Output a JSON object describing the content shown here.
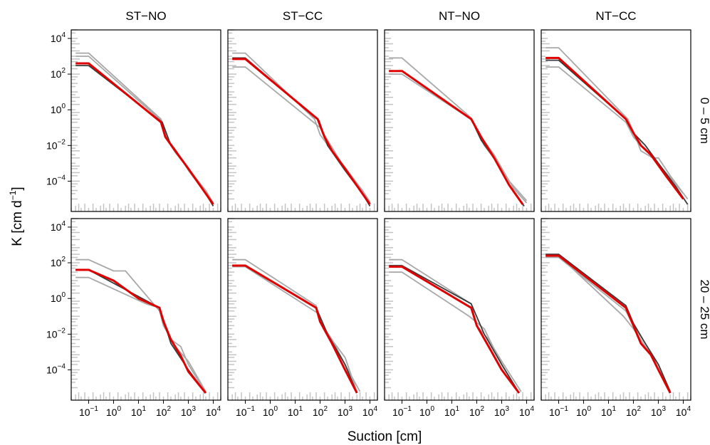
{
  "chart_data": {
    "type": "line",
    "facet_columns": [
      "ST−NO",
      "ST−CC",
      "NT−NO",
      "NT−CC"
    ],
    "facet_rows": [
      "0 – 5 cm",
      "20 – 25 cm"
    ],
    "xlabel": "Suction [cm]",
    "ylabel_main": "K  [cm d",
    "ylabel_sup": "−1",
    "ylabel_end": "]",
    "x_scale": "log10",
    "y_scale": "log10",
    "xlim": [
      0.02,
      20000
    ],
    "ylim": [
      2e-06,
      30000
    ],
    "x_ticks": [
      0.1,
      1,
      10,
      100,
      1000,
      10000
    ],
    "x_tick_exponents": [
      "−1",
      "0",
      "1",
      "2",
      "3",
      "4"
    ],
    "y_ticks": [
      0.0001,
      0.01,
      1,
      100,
      10000
    ],
    "y_tick_exponents": [
      "−4",
      "−2",
      "0",
      "2",
      "4"
    ],
    "tick_base": "10",
    "grid": false,
    "colors": {
      "mean": "#e00000",
      "replicate_light": "#a8a8a8",
      "replicate_dark": "#3a3a3a"
    },
    "panels": [
      {
        "column": "ST−NO",
        "row": "0 – 5 cm",
        "mean": {
          "x": [
            0.03,
            0.1,
            80,
            120,
            300,
            1000,
            5000,
            10000
          ],
          "y": [
            400,
            400,
            0.2,
            0.03,
            0.005,
            0.0005,
            2e-05,
            5e-06
          ]
        },
        "replicates": [
          {
            "shade": "light",
            "x": [
              0.03,
              0.1,
              70,
              120,
              300,
              1000,
              5000,
              10000
            ],
            "y": [
              1000,
              1000,
              0.3,
              0.03,
              0.004,
              0.0005,
              3e-05,
              6e-06
            ]
          },
          {
            "shade": "light",
            "x": [
              0.03,
              0.1,
              80,
              150,
              300,
              1000,
              5000,
              10000
            ],
            "y": [
              1500,
              1500,
              0.3,
              0.02,
              0.006,
              0.0004,
              2e-05,
              5e-06
            ]
          },
          {
            "shade": "dark",
            "x": [
              0.03,
              0.1,
              90,
              200,
              1000,
              5000,
              10000
            ],
            "y": [
              300,
              300,
              0.2,
              0.01,
              0.0005,
              2e-05,
              4e-06
            ]
          }
        ]
      },
      {
        "column": "ST−CC",
        "row": "0 – 5 cm",
        "mean": {
          "x": [
            0.03,
            0.1,
            80,
            150,
            300,
            1000,
            5000,
            10000
          ],
          "y": [
            700,
            700,
            0.3,
            0.03,
            0.005,
            0.0005,
            2e-05,
            5e-06
          ]
        },
        "replicates": [
          {
            "shade": "light",
            "x": [
              0.03,
              0.1,
              60,
              100,
              300,
              1000,
              5000,
              10000
            ],
            "y": [
              1500,
              1500,
              0.3,
              0.04,
              0.005,
              0.0006,
              3e-05,
              6e-06
            ]
          },
          {
            "shade": "light",
            "x": [
              0.03,
              0.1,
              100,
              200,
              1000,
              5000,
              10000
            ],
            "y": [
              250,
              250,
              0.1,
              0.02,
              0.0005,
              3e-05,
              7e-06
            ]
          },
          {
            "shade": "dark",
            "x": [
              0.03,
              0.1,
              90,
              200,
              1000,
              5000,
              10000
            ],
            "y": [
              800,
              800,
              0.25,
              0.01,
              0.0004,
              2e-05,
              4e-06
            ]
          }
        ]
      },
      {
        "column": "NT−NO",
        "row": "0 – 5 cm",
        "mean": {
          "x": [
            0.03,
            0.1,
            60,
            150,
            500,
            2000,
            7000
          ],
          "y": [
            150,
            150,
            0.3,
            0.03,
            0.002,
            6e-05,
            5e-06
          ]
        },
        "replicates": [
          {
            "shade": "light",
            "x": [
              0.03,
              0.1,
              60,
              150,
              500,
              2000,
              10000
            ],
            "y": [
              800,
              800,
              0.35,
              0.03,
              0.003,
              0.0001,
              8e-06
            ]
          },
          {
            "shade": "light",
            "x": [
              0.03,
              0.1,
              70,
              200,
              1000,
              3000,
              10000
            ],
            "y": [
              100,
              100,
              0.25,
              0.01,
              0.0005,
              4e-05,
              6e-06
            ]
          },
          {
            "shade": "dark",
            "x": [
              0.03,
              0.1,
              60,
              150,
              500,
              2000,
              8000
            ],
            "y": [
              150,
              150,
              0.3,
              0.02,
              0.002,
              6e-05,
              4e-06
            ]
          }
        ]
      },
      {
        "column": "NT−CC",
        "row": "0 – 5 cm",
        "mean": {
          "x": [
            0.03,
            0.1,
            50,
            100,
            200,
            500,
            2000,
            10000
          ],
          "y": [
            800,
            800,
            0.3,
            0.05,
            0.01,
            0.003,
            0.0002,
            1e-05
          ]
        },
        "replicates": [
          {
            "shade": "light",
            "x": [
              0.03,
              0.1,
              60,
              100,
              200,
              600,
              1000,
              3000,
              15000
            ],
            "y": [
              3000,
              3000,
              0.3,
              0.06,
              0.005,
              0.002,
              0.002,
              0.0002,
              1e-05
            ]
          },
          {
            "shade": "light",
            "x": [
              0.03,
              0.1,
              50,
              100,
              200,
              500,
              2000,
              10000
            ],
            "y": [
              250,
              250,
              0.2,
              0.03,
              0.01,
              0.003,
              0.0003,
              2e-05
            ]
          },
          {
            "shade": "dark",
            "x": [
              0.03,
              0.1,
              50,
              100,
              300,
              1000,
              5000,
              15000
            ],
            "y": [
              600,
              600,
              0.3,
              0.05,
              0.01,
              0.001,
              5e-05,
              5e-06
            ]
          }
        ]
      },
      {
        "column": "ST−NO",
        "row": "20 – 25 cm",
        "mean": {
          "x": [
            0.03,
            0.1,
            1,
            10,
            70,
            100,
            200,
            500,
            1000,
            5000
          ],
          "y": [
            40,
            40,
            10,
            1,
            0.3,
            0.05,
            0.005,
            0.0006,
            8e-05,
            5e-06
          ]
        },
        "replicates": [
          {
            "shade": "light",
            "x": [
              0.03,
              0.1,
              1,
              3,
              70,
              100,
              300,
              1000,
              5000
            ],
            "y": [
              150,
              150,
              35,
              35,
              0.2,
              0.03,
              0.002,
              0.0003,
              6e-06
            ]
          },
          {
            "shade": "light",
            "x": [
              0.03,
              0.1,
              20,
              70,
              200,
              500,
              1000,
              5000
            ],
            "y": [
              15,
              15,
              0.5,
              0.3,
              0.005,
              0.002,
              0.0002,
              5e-06
            ]
          },
          {
            "shade": "dark",
            "x": [
              0.03,
              0.1,
              70,
              200,
              1000,
              5000
            ],
            "y": [
              40,
              40,
              0.3,
              0.003,
              0.0001,
              5e-06
            ]
          }
        ]
      },
      {
        "column": "ST−CC",
        "row": "20 – 25 cm",
        "mean": {
          "x": [
            0.03,
            0.1,
            70,
            100,
            300,
            1000,
            3000
          ],
          "y": [
            70,
            70,
            0.3,
            0.05,
            0.003,
            0.0001,
            5e-06
          ]
        },
        "replicates": [
          {
            "shade": "light",
            "x": [
              0.03,
              0.1,
              70,
              100,
              300,
              1000,
              4000
            ],
            "y": [
              150,
              150,
              0.4,
              0.05,
              0.005,
              0.0002,
              6e-06
            ]
          },
          {
            "shade": "light",
            "x": [
              0.03,
              0.1,
              80,
              200,
              1000,
              3000
            ],
            "y": [
              60,
              60,
              0.15,
              0.01,
              0.0005,
              6e-06
            ]
          },
          {
            "shade": "dark",
            "x": [
              0.03,
              0.1,
              70,
              200,
              1000,
              3000
            ],
            "y": [
              70,
              70,
              0.3,
              0.01,
              0.0002,
              5e-06
            ]
          }
        ]
      },
      {
        "column": "NT−NO",
        "row": "20 – 25 cm",
        "mean": {
          "x": [
            0.03,
            0.1,
            60,
            100,
            300,
            1000,
            5000
          ],
          "y": [
            60,
            60,
            0.3,
            0.03,
            0.002,
            0.0001,
            5e-06
          ]
        },
        "replicates": [
          {
            "shade": "light",
            "x": [
              0.03,
              0.1,
              60,
              100,
              300,
              1000,
              6000
            ],
            "y": [
              150,
              150,
              0.5,
              0.03,
              0.005,
              0.0003,
              6e-06
            ]
          },
          {
            "shade": "light",
            "x": [
              0.03,
              0.1,
              50,
              200,
              1000,
              5000
            ],
            "y": [
              30,
              30,
              0.1,
              0.02,
              0.0002,
              5e-06
            ]
          },
          {
            "shade": "dark",
            "x": [
              0.03,
              0.1,
              60,
              200,
              1000,
              5000
            ],
            "y": [
              70,
              70,
              0.5,
              0.01,
              0.0002,
              5e-06
            ]
          }
        ]
      },
      {
        "column": "NT−CC",
        "row": "20 – 25 cm",
        "mean": {
          "x": [
            0.03,
            0.1,
            50,
            100,
            200,
            500,
            1000,
            3000
          ],
          "y": [
            250,
            250,
            0.3,
            0.03,
            0.003,
            0.0007,
            0.0001,
            5e-06
          ]
        },
        "replicates": [
          {
            "shade": "light",
            "x": [
              0.03,
              0.1,
              40,
              100,
              300,
              1000,
              3000
            ],
            "y": [
              250,
              250,
              0.1,
              0.02,
              0.002,
              0.0002,
              5e-06
            ]
          },
          {
            "shade": "light",
            "x": [
              0.03,
              0.1,
              50,
              100,
              300,
              1000,
              3000
            ],
            "y": [
              200,
              200,
              0.2,
              0.03,
              0.003,
              0.0002,
              5e-06
            ]
          },
          {
            "shade": "dark",
            "x": [
              0.03,
              0.1,
              50,
              100,
              300,
              1000,
              3000
            ],
            "y": [
              300,
              300,
              0.4,
              0.04,
              0.003,
              0.0002,
              6e-06
            ]
          }
        ]
      }
    ]
  }
}
